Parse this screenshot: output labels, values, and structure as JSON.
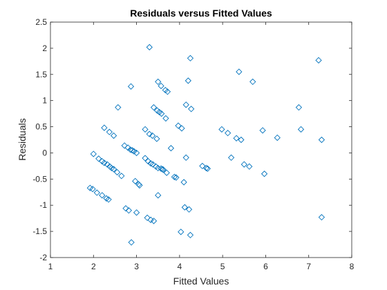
{
  "chart_data": {
    "type": "scatter",
    "title": "Residuals versus Fitted Values",
    "xlabel": "Fitted Values",
    "ylabel": "Residuals",
    "xlim": [
      1,
      8
    ],
    "ylim": [
      -2,
      2.5
    ],
    "xticks": [
      "1",
      "2",
      "3",
      "4",
      "5",
      "6",
      "7",
      "8"
    ],
    "yticks": [
      "-2",
      "-1.5",
      "-1",
      "-0.5",
      "0",
      "0.5",
      "1",
      "1.5",
      "2",
      "2.5"
    ],
    "grid": false,
    "marker": "diamond",
    "marker_color": "#0072BD",
    "axis_color": "#262626",
    "points": [
      [
        1.92,
        -0.67
      ],
      [
        1.98,
        -0.69
      ],
      [
        2.08,
        -0.76
      ],
      [
        2.2,
        -0.81
      ],
      [
        2.3,
        -0.87
      ],
      [
        2.35,
        -0.89
      ],
      [
        2.0,
        -0.02
      ],
      [
        2.12,
        -0.11
      ],
      [
        2.2,
        -0.16
      ],
      [
        2.25,
        -0.19
      ],
      [
        2.32,
        -0.22
      ],
      [
        2.38,
        -0.26
      ],
      [
        2.42,
        -0.29
      ],
      [
        2.47,
        -0.31
      ],
      [
        2.55,
        -0.37
      ],
      [
        2.65,
        -0.44
      ],
      [
        2.25,
        0.48
      ],
      [
        2.37,
        0.4
      ],
      [
        2.47,
        0.33
      ],
      [
        2.57,
        0.87
      ],
      [
        2.72,
        0.14
      ],
      [
        2.8,
        0.1
      ],
      [
        2.86,
        0.06
      ],
      [
        2.9,
        0.05
      ],
      [
        2.94,
        0.03
      ],
      [
        3.0,
        0.0
      ],
      [
        2.75,
        -1.06
      ],
      [
        2.82,
        -1.1
      ],
      [
        2.87,
        1.27
      ],
      [
        2.88,
        -1.71
      ],
      [
        2.97,
        -0.54
      ],
      [
        3.0,
        -1.14
      ],
      [
        3.05,
        -0.6
      ],
      [
        3.07,
        -0.62
      ],
      [
        3.2,
        -0.1
      ],
      [
        3.27,
        -0.16
      ],
      [
        3.33,
        -0.2
      ],
      [
        3.38,
        -0.22
      ],
      [
        3.45,
        -0.26
      ],
      [
        3.5,
        -0.29
      ],
      [
        3.2,
        0.45
      ],
      [
        3.3,
        0.36
      ],
      [
        3.37,
        0.33
      ],
      [
        3.47,
        0.27
      ],
      [
        3.25,
        -1.24
      ],
      [
        3.33,
        -1.28
      ],
      [
        3.4,
        -1.3
      ],
      [
        3.3,
        2.02
      ],
      [
        3.5,
        -0.81
      ],
      [
        3.4,
        0.87
      ],
      [
        3.48,
        0.81
      ],
      [
        3.53,
        0.78
      ],
      [
        3.58,
        0.75
      ],
      [
        3.68,
        0.66
      ],
      [
        3.5,
        1.36
      ],
      [
        3.57,
        1.28
      ],
      [
        3.67,
        1.2
      ],
      [
        3.72,
        1.17
      ],
      [
        3.57,
        -0.3
      ],
      [
        3.6,
        -0.31
      ],
      [
        3.62,
        -0.32
      ],
      [
        3.7,
        -0.38
      ],
      [
        3.8,
        0.09
      ],
      [
        3.88,
        -0.46
      ],
      [
        3.92,
        -0.47
      ],
      [
        3.97,
        0.52
      ],
      [
        4.05,
        0.47
      ],
      [
        4.03,
        -1.51
      ],
      [
        4.1,
        -0.56
      ],
      [
        4.12,
        -1.04
      ],
      [
        4.15,
        -0.09
      ],
      [
        4.15,
        0.92
      ],
      [
        4.2,
        1.38
      ],
      [
        4.22,
        -1.08
      ],
      [
        4.25,
        -1.57
      ],
      [
        4.25,
        1.81
      ],
      [
        4.27,
        0.84
      ],
      [
        4.53,
        -0.25
      ],
      [
        4.62,
        -0.29
      ],
      [
        4.65,
        -0.3
      ],
      [
        4.98,
        0.45
      ],
      [
        5.12,
        0.38
      ],
      [
        5.2,
        -0.09
      ],
      [
        5.32,
        0.28
      ],
      [
        5.38,
        1.55
      ],
      [
        5.43,
        0.25
      ],
      [
        5.5,
        -0.22
      ],
      [
        5.62,
        -0.26
      ],
      [
        5.7,
        1.36
      ],
      [
        5.93,
        0.43
      ],
      [
        5.97,
        -0.4
      ],
      [
        6.27,
        0.29
      ],
      [
        6.77,
        0.87
      ],
      [
        6.82,
        0.45
      ],
      [
        7.23,
        1.77
      ],
      [
        7.3,
        0.25
      ],
      [
        7.3,
        -1.23
      ]
    ]
  }
}
